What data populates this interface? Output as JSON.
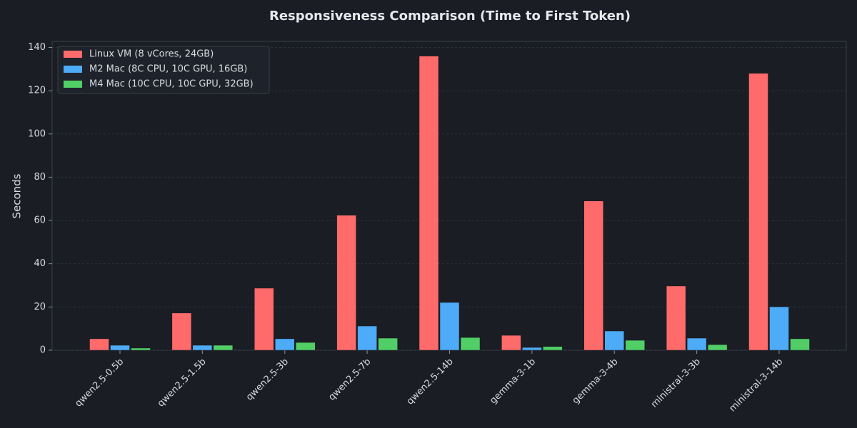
{
  "chart_data": {
    "type": "bar",
    "title": "Responsiveness Comparison (Time to First Token)",
    "y_label": "Seconds",
    "categories": [
      "qwen2.5-0.5b",
      "qwen2.5-1.5b",
      "qwen2.5-3b",
      "qwen2.5-7b",
      "qwen2.5-14b",
      "gemma-3-1b",
      "gemma-3-4b",
      "ministral-3-3b",
      "ministral-3-14b"
    ],
    "series": [
      {
        "name": "Linux VM (8 vCores, 24GB)",
        "color": "#ff6b6b",
        "values": [
          5.3,
          17.2,
          28.7,
          62.4,
          136,
          6.9,
          69,
          29.7,
          128
        ]
      },
      {
        "name": "M2 Mac (8C CPU, 10C GPU, 16GB)",
        "color": "#4dabf7",
        "values": [
          2.3,
          2.3,
          5.3,
          11.2,
          22.1,
          1.3,
          8.9,
          5.6,
          20.1
        ]
      },
      {
        "name": "M4 Mac (10C CPU, 10C GPU, 32GB)",
        "color": "#51cf66",
        "values": [
          1.0,
          2.3,
          3.6,
          5.6,
          5.9,
          1.7,
          4.6,
          2.6,
          5.3
        ]
      }
    ],
    "ylim": [
      0,
      142.8
    ],
    "yticks": [
      0,
      20,
      40,
      60,
      80,
      100,
      120,
      140
    ],
    "grid": true,
    "legend": "upper-left"
  }
}
